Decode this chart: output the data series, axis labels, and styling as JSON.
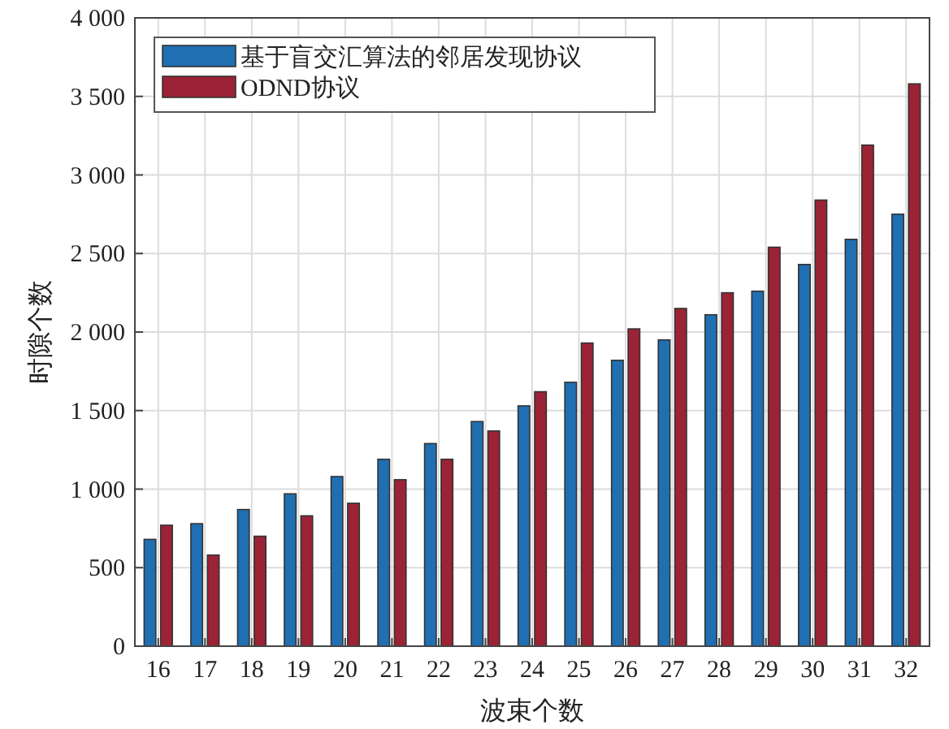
{
  "chart_data": {
    "type": "bar",
    "xlabel": "波束个数",
    "ylabel": "时隙个数",
    "categories": [
      "16",
      "17",
      "18",
      "19",
      "20",
      "21",
      "22",
      "23",
      "24",
      "25",
      "26",
      "27",
      "28",
      "29",
      "30",
      "31",
      "32"
    ],
    "series": [
      {
        "name": "基于盲交汇算法的邻居发现协议",
        "color": "#1f6fb2",
        "values": [
          680,
          780,
          870,
          970,
          1080,
          1190,
          1290,
          1430,
          1530,
          1680,
          1820,
          1950,
          2110,
          2260,
          2430,
          2590,
          2750
        ]
      },
      {
        "name": "ODND协议",
        "color": "#9b2335",
        "values": [
          770,
          580,
          700,
          830,
          910,
          1060,
          1190,
          1370,
          1620,
          1930,
          2020,
          2150,
          2250,
          2540,
          2840,
          3190,
          3580
        ]
      }
    ],
    "ylim": [
      0,
      4000
    ],
    "yticks": [
      0,
      500,
      {
        "value": 1000,
        "label": "1 000"
      },
      {
        "value": 1500,
        "label": "1 500"
      },
      {
        "value": 2000,
        "label": "2 000"
      },
      {
        "value": 2500,
        "label": "2 500"
      },
      {
        "value": 3000,
        "label": "3 000"
      },
      {
        "value": 3500,
        "label": "3 500"
      },
      {
        "value": 4000,
        "label": "4 000"
      }
    ],
    "grid": true,
    "legend": "top left"
  }
}
